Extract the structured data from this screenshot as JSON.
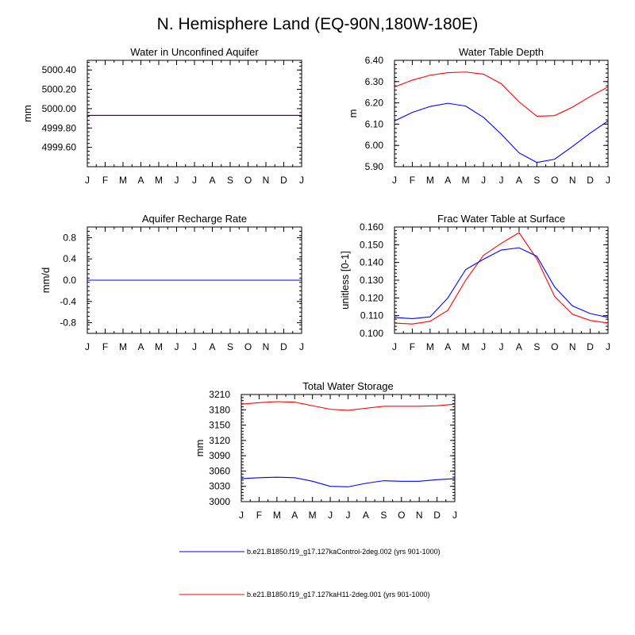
{
  "figure": {
    "title": "N. Hemisphere Land (EQ-90N,180W-180E)"
  },
  "colors": {
    "control": "#0000ff",
    "h11": "#ff0000",
    "axis": "#000000"
  },
  "legend": {
    "entries": [
      {
        "label": "b.e21.B1850.f19_g17.127kaControl-2deg.002 (yrs 901-1000)",
        "color": "#0000ff"
      },
      {
        "label": "b.e21.B1850.f19_g17.127kaH11-2deg.001 (yrs 901-1000)",
        "color": "#ff0000"
      }
    ]
  },
  "chart_data": [
    {
      "type": "line",
      "title": "Water in Unconfined Aquifer",
      "ylabel": "mm",
      "categories": [
        "J",
        "F",
        "M",
        "A",
        "M",
        "J",
        "J",
        "A",
        "S",
        "O",
        "N",
        "D",
        "J"
      ],
      "ylim": [
        4999.4,
        5000.5
      ],
      "yticks": [
        4999.6,
        4999.8,
        5000.0,
        5000.2,
        5000.4
      ],
      "ytick_labels": [
        "4999.60",
        "4999.80",
        "5000.00",
        "5000.20",
        "5000.40"
      ],
      "series": [
        {
          "color": "#ff0000",
          "values": [
            4999.93,
            4999.93,
            4999.93,
            4999.93,
            4999.93,
            4999.93,
            4999.93,
            4999.93,
            4999.93,
            4999.93,
            4999.93,
            4999.93,
            4999.93
          ]
        },
        {
          "color": "#0000ff",
          "values": [
            4999.93,
            4999.93,
            4999.93,
            4999.93,
            4999.93,
            4999.93,
            4999.93,
            4999.93,
            4999.93,
            4999.93,
            4999.93,
            4999.93,
            4999.93
          ]
        }
      ]
    },
    {
      "type": "line",
      "title": "Water Table Depth",
      "ylabel": "m",
      "categories": [
        "J",
        "F",
        "M",
        "A",
        "M",
        "J",
        "J",
        "A",
        "S",
        "O",
        "N",
        "D",
        "J"
      ],
      "ylim": [
        5.9,
        6.4
      ],
      "yticks": [
        5.9,
        6.0,
        6.1,
        6.2,
        6.3,
        6.4
      ],
      "ytick_labels": [
        "5.90",
        "6.00",
        "6.10",
        "6.20",
        "6.30",
        "6.40"
      ],
      "series": [
        {
          "color": "#ff0000",
          "values": [
            6.275,
            6.307,
            6.33,
            6.342,
            6.345,
            6.335,
            6.29,
            6.205,
            6.137,
            6.14,
            6.18,
            6.23,
            6.275
          ]
        },
        {
          "color": "#0000ff",
          "values": [
            6.115,
            6.155,
            6.183,
            6.198,
            6.185,
            6.132,
            6.053,
            5.965,
            5.92,
            5.935,
            5.995,
            6.058,
            6.115
          ]
        }
      ]
    },
    {
      "type": "line",
      "title": "Aquifer Recharge Rate",
      "ylabel": "mm/d",
      "categories": [
        "J",
        "F",
        "M",
        "A",
        "M",
        "J",
        "J",
        "A",
        "S",
        "O",
        "N",
        "D",
        "J"
      ],
      "ylim": [
        -1.0,
        1.0
      ],
      "yticks": [
        -0.8,
        -0.4,
        0.0,
        0.4,
        0.8
      ],
      "ytick_labels": [
        "-0.8",
        "-0.4",
        "0.0",
        "0.4",
        "0.8"
      ],
      "series": [
        {
          "color": "#ff0000",
          "values": [
            0,
            0,
            0,
            0,
            0,
            0,
            0,
            0,
            0,
            0,
            0,
            0,
            0
          ]
        },
        {
          "color": "#0000ff",
          "values": [
            0,
            0,
            0,
            0,
            0,
            0,
            0,
            0,
            0,
            0,
            0,
            0,
            0
          ]
        }
      ]
    },
    {
      "type": "line",
      "title": "Frac Water Table at Surface",
      "ylabel": "unitless [0-1]",
      "categories": [
        "J",
        "F",
        "M",
        "A",
        "M",
        "J",
        "J",
        "A",
        "S",
        "O",
        "N",
        "D",
        "J"
      ],
      "ylim": [
        0.1,
        0.16
      ],
      "yticks": [
        0.1,
        0.11,
        0.12,
        0.13,
        0.14,
        0.15,
        0.16
      ],
      "ytick_labels": [
        "0.100",
        "0.110",
        "0.120",
        "0.130",
        "0.140",
        "0.150",
        "0.160"
      ],
      "series": [
        {
          "color": "#ff0000",
          "values": [
            0.1058,
            0.1053,
            0.1068,
            0.113,
            0.13,
            0.144,
            0.1508,
            0.1568,
            0.142,
            0.1208,
            0.1108,
            0.1073,
            0.1058
          ]
        },
        {
          "color": "#0000ff",
          "values": [
            0.109,
            0.1083,
            0.1093,
            0.12,
            0.136,
            0.1418,
            0.147,
            0.1483,
            0.1435,
            0.1262,
            0.1155,
            0.1112,
            0.109
          ]
        }
      ]
    },
    {
      "type": "line",
      "title": "Total Water Storage",
      "ylabel": "mm",
      "categories": [
        "J",
        "F",
        "M",
        "A",
        "M",
        "J",
        "J",
        "A",
        "S",
        "O",
        "N",
        "D",
        "J"
      ],
      "ylim": [
        3000,
        3210
      ],
      "yticks": [
        3000,
        3030,
        3060,
        3090,
        3120,
        3150,
        3180,
        3210
      ],
      "ytick_labels": [
        "3000",
        "3030",
        "3060",
        "3090",
        "3120",
        "3150",
        "3180",
        "3210"
      ],
      "series": [
        {
          "color": "#ff0000",
          "values": [
            3191,
            3194,
            3196,
            3195,
            3188,
            3181,
            3179,
            3183,
            3187,
            3187,
            3187,
            3188,
            3191
          ]
        },
        {
          "color": "#0000ff",
          "values": [
            3045,
            3047,
            3048,
            3047,
            3040,
            3030,
            3029,
            3036,
            3041,
            3040,
            3040,
            3043,
            3045
          ]
        }
      ]
    }
  ]
}
